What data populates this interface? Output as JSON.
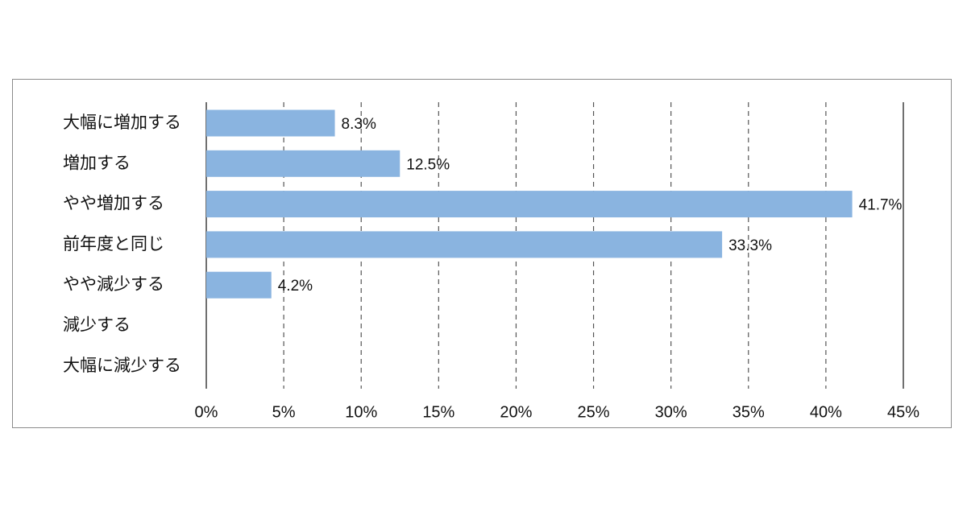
{
  "chart_data": {
    "type": "bar",
    "orientation": "horizontal",
    "categories": [
      "大幅に増加する",
      "増加する",
      "やや増加する",
      "前年度と同じ",
      "やや減少する",
      "減少する",
      "大幅に減少する"
    ],
    "values": [
      8.3,
      12.5,
      41.7,
      33.3,
      4.2,
      0,
      0
    ],
    "value_labels": [
      "8.3%",
      "12.5%",
      "41.7%",
      "33.3%",
      "4.2%",
      "",
      ""
    ],
    "xlim": [
      0,
      45
    ],
    "x_ticks": [
      0,
      5,
      10,
      15,
      20,
      25,
      30,
      35,
      40,
      45
    ],
    "x_tick_labels": [
      "0%",
      "5%",
      "10%",
      "15%",
      "20%",
      "25%",
      "30%",
      "35%",
      "40%",
      "45%"
    ],
    "grid": "vertical dashed",
    "bar_color": "#8ab4e0"
  }
}
